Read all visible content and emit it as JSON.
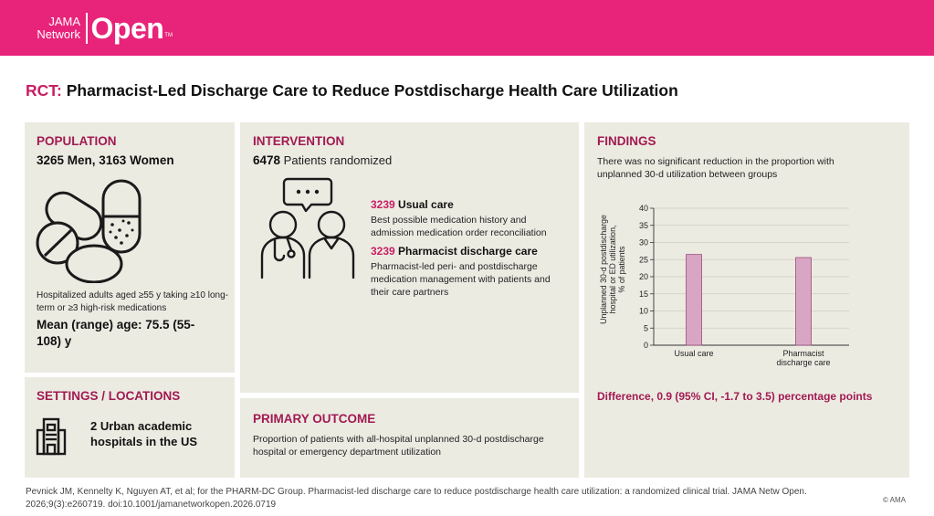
{
  "header": {
    "logo_small_top": "JAMA",
    "logo_small_bottom": "Network",
    "logo_big": "Open",
    "logo_tm": "TM"
  },
  "title": {
    "prefix": "RCT:",
    "text": "Pharmacist-Led Discharge Care to Reduce Postdischarge Health Care Utilization"
  },
  "population": {
    "heading": "POPULATION",
    "count": "3265 Men, 3163 Women",
    "description": "Hospitalized adults aged ≥55 y taking ≥10 long-term or ≥3 high-risk medications",
    "age": "Mean (range) age: 75.5 (55-108) y",
    "icon": "pills-icon"
  },
  "settings": {
    "heading": "SETTINGS / LOCATIONS",
    "text": "2 Urban academic hospitals in the US",
    "icon": "hospital-building-icon"
  },
  "intervention": {
    "heading": "INTERVENTION",
    "randomized_num": "6478",
    "randomized_text": "Patients randomized",
    "icon": "clinician-patient-conversation-icon",
    "arms": [
      {
        "count": "3239",
        "name": "Usual care",
        "description": "Best possible medication history and admission medication order reconciliation"
      },
      {
        "count": "3239",
        "name": "Pharmacist discharge care",
        "description": "Pharmacist-led peri- and postdischarge medication management with patients and their care partners"
      }
    ]
  },
  "primary_outcome": {
    "heading": "PRIMARY OUTCOME",
    "text": "Proportion of patients with all-hospital unplanned 30-d postdischarge hospital or emergency department utilization"
  },
  "findings": {
    "heading": "FINDINGS",
    "summary": "There was no significant reduction in the proportion with unplanned 30-d utilization between groups",
    "difference": "Difference, 0.9 (95% CI, -1.7 to 3.5) percentage points"
  },
  "chart_data": {
    "type": "bar",
    "categories": [
      "Usual care",
      "Pharmacist discharge care"
    ],
    "category_lines": [
      [
        "Usual care"
      ],
      [
        "Pharmacist",
        "discharge care"
      ]
    ],
    "values": [
      26.5,
      25.6
    ],
    "ylim": [
      0,
      40
    ],
    "yticks": [
      0,
      5,
      10,
      15,
      20,
      25,
      30,
      35,
      40
    ],
    "ylabel_lines": [
      "Unplanned 30-d postdischarge",
      "hospital or ED utilization,",
      "% of patients"
    ],
    "xlabel": "",
    "title": "",
    "grid": true,
    "bar_color": "#d8a6c4",
    "bar_stroke": "#9c4d7a"
  },
  "citation": "Pevnick JM, Kennelty K, Nguyen AT, et al; for the PHARM-DC Group. Pharmacist-led discharge care to reduce postdischarge health care utilization: a randomized clinical trial. JAMA Netw Open. 2026;9(3):e260719. doi:10.1001/jamanetworkopen.2026.0719",
  "copyright": "© AMA",
  "colors": {
    "brand": "#e8237a",
    "heading": "#a11a52",
    "panel": "#ecebe2"
  }
}
